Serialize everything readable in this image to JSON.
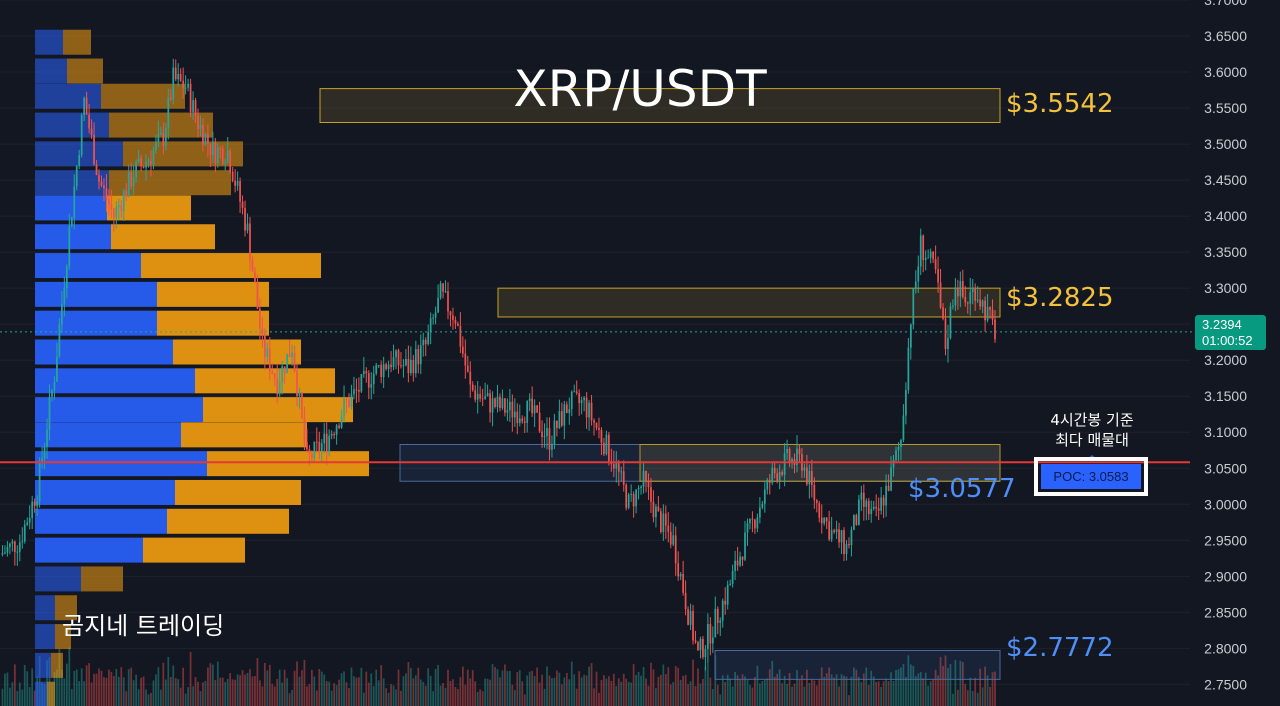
{
  "header": {
    "title": "XRP/USDT"
  },
  "watermark": "곰지네 트레이딩",
  "annotation": {
    "line1": "4시간봉 기준",
    "line2": "최다 매물대"
  },
  "poc": {
    "label": "POC: 3.0583",
    "value": 3.0583
  },
  "current_price": {
    "price": "3.2394",
    "countdown": "01:00:52",
    "value": 3.2394
  },
  "levels": [
    {
      "label": "$3.5542",
      "value": 3.5542,
      "color": "#f3c23c",
      "zone": [
        3.53,
        3.577
      ],
      "zone_from": 320,
      "zone_to": 1000
    },
    {
      "label": "$3.2825",
      "value": 3.2825,
      "color": "#f3c23c",
      "zone": [
        3.26,
        3.3
      ],
      "zone_from": 498,
      "zone_to": 1000
    },
    {
      "label": "$3.0577",
      "value": 3.0577,
      "color": "#4f8ff7",
      "zone": [
        3.032,
        3.083
      ],
      "zone_from": 400,
      "zone_to": 1000
    },
    {
      "label": "$2.7772",
      "value": 2.7772,
      "color": "#4f8ff7",
      "zone": [
        2.757,
        2.797
      ],
      "zone_from": 715,
      "zone_to": 1000
    }
  ],
  "colors": {
    "background": "#131722",
    "up": "#26a69a",
    "down": "#ef5350",
    "poc_line": "#e53935",
    "vp_buy": "#2962ff",
    "vp_sell": "#f59d0f",
    "tag_bg": "#089981"
  },
  "chart_data": {
    "type": "candlestick",
    "title": "XRP/USDT",
    "y_ticks": [
      "3.7000",
      "3.6500",
      "3.6000",
      "3.5500",
      "3.5000",
      "3.4500",
      "3.4000",
      "3.3500",
      "3.3000",
      "3.2500",
      "3.2000",
      "3.1500",
      "3.1000",
      "3.0500",
      "3.0000",
      "2.9500",
      "2.9000",
      "2.8500",
      "2.8000",
      "2.7500"
    ],
    "ylim": [
      2.72,
      3.7
    ],
    "poc": 3.0583,
    "last_price": 3.2394,
    "close_path": [
      [
        0,
        2.93
      ],
      [
        8,
        2.95
      ],
      [
        15,
        3.02
      ],
      [
        22,
        3.18
      ],
      [
        28,
        3.38
      ],
      [
        34,
        3.56
      ],
      [
        40,
        3.45
      ],
      [
        46,
        3.4
      ],
      [
        54,
        3.46
      ],
      [
        60,
        3.48
      ],
      [
        66,
        3.51
      ],
      [
        70,
        3.59
      ],
      [
        75,
        3.58
      ],
      [
        80,
        3.53
      ],
      [
        86,
        3.49
      ],
      [
        92,
        3.49
      ],
      [
        100,
        3.38
      ],
      [
        106,
        3.22
      ],
      [
        112,
        3.17
      ],
      [
        118,
        3.22
      ],
      [
        124,
        3.06
      ],
      [
        132,
        3.09
      ],
      [
        140,
        3.14
      ],
      [
        150,
        3.18
      ],
      [
        158,
        3.2
      ],
      [
        165,
        3.19
      ],
      [
        172,
        3.22
      ],
      [
        178,
        3.29
      ],
      [
        184,
        3.26
      ],
      [
        190,
        3.16
      ],
      [
        198,
        3.14
      ],
      [
        206,
        3.13
      ],
      [
        214,
        3.13
      ],
      [
        222,
        3.09
      ],
      [
        230,
        3.14
      ],
      [
        236,
        3.14
      ],
      [
        242,
        3.1
      ],
      [
        248,
        3.06
      ],
      [
        254,
        3.0
      ],
      [
        260,
        3.03
      ],
      [
        266,
        2.98
      ],
      [
        272,
        2.95
      ],
      [
        278,
        2.85
      ],
      [
        282,
        2.79
      ],
      [
        288,
        2.83
      ],
      [
        294,
        2.88
      ],
      [
        300,
        2.94
      ],
      [
        306,
        2.99
      ],
      [
        312,
        3.04
      ],
      [
        318,
        3.06
      ],
      [
        324,
        3.06
      ],
      [
        330,
        3.0
      ],
      [
        336,
        2.96
      ],
      [
        342,
        2.94
      ],
      [
        348,
        3.0
      ],
      [
        354,
        2.98
      ],
      [
        360,
        3.04
      ],
      [
        364,
        3.09
      ],
      [
        368,
        3.26
      ],
      [
        372,
        3.36
      ],
      [
        378,
        3.32
      ],
      [
        382,
        3.22
      ],
      [
        386,
        3.31
      ],
      [
        390,
        3.28
      ],
      [
        394,
        3.3
      ],
      [
        398,
        3.27
      ],
      [
        402,
        3.24
      ]
    ],
    "volume_profile": [
      {
        "price": 3.64,
        "buy": 0.14,
        "sell": 0.14
      },
      {
        "price": 3.6,
        "buy": 0.16,
        "sell": 0.18
      },
      {
        "price": 3.565,
        "buy": 0.33,
        "sell": 0.42
      },
      {
        "price": 3.525,
        "buy": 0.37,
        "sell": 0.52
      },
      {
        "price": 3.485,
        "buy": 0.44,
        "sell": 0.6
      },
      {
        "price": 3.445,
        "buy": 0.37,
        "sell": 0.61
      },
      {
        "price": 3.41,
        "buy": 0.36,
        "sell": 0.42
      },
      {
        "price": 3.37,
        "buy": 0.38,
        "sell": 0.52
      },
      {
        "price": 3.33,
        "buy": 0.53,
        "sell": 0.9
      },
      {
        "price": 3.29,
        "buy": 0.61,
        "sell": 0.56
      },
      {
        "price": 3.25,
        "buy": 0.61,
        "sell": 0.56
      },
      {
        "price": 3.21,
        "buy": 0.69,
        "sell": 0.64
      },
      {
        "price": 3.17,
        "buy": 0.8,
        "sell": 0.7
      },
      {
        "price": 3.13,
        "buy": 0.84,
        "sell": 0.75
      },
      {
        "price": 3.095,
        "buy": 0.73,
        "sell": 0.63
      },
      {
        "price": 3.055,
        "buy": 0.86,
        "sell": 0.81
      },
      {
        "price": 3.015,
        "buy": 0.7,
        "sell": 0.63
      },
      {
        "price": 2.975,
        "buy": 0.66,
        "sell": 0.61
      },
      {
        "price": 2.935,
        "buy": 0.54,
        "sell": 0.51
      },
      {
        "price": 2.895,
        "buy": 0.23,
        "sell": 0.21
      },
      {
        "price": 2.855,
        "buy": 0.1,
        "sell": 0.11
      },
      {
        "price": 2.815,
        "buy": 0.1,
        "sell": 0.08
      },
      {
        "price": 2.775,
        "buy": 0.08,
        "sell": 0.06
      },
      {
        "price": 2.735,
        "buy": 0.06,
        "sell": 0.04
      }
    ]
  }
}
